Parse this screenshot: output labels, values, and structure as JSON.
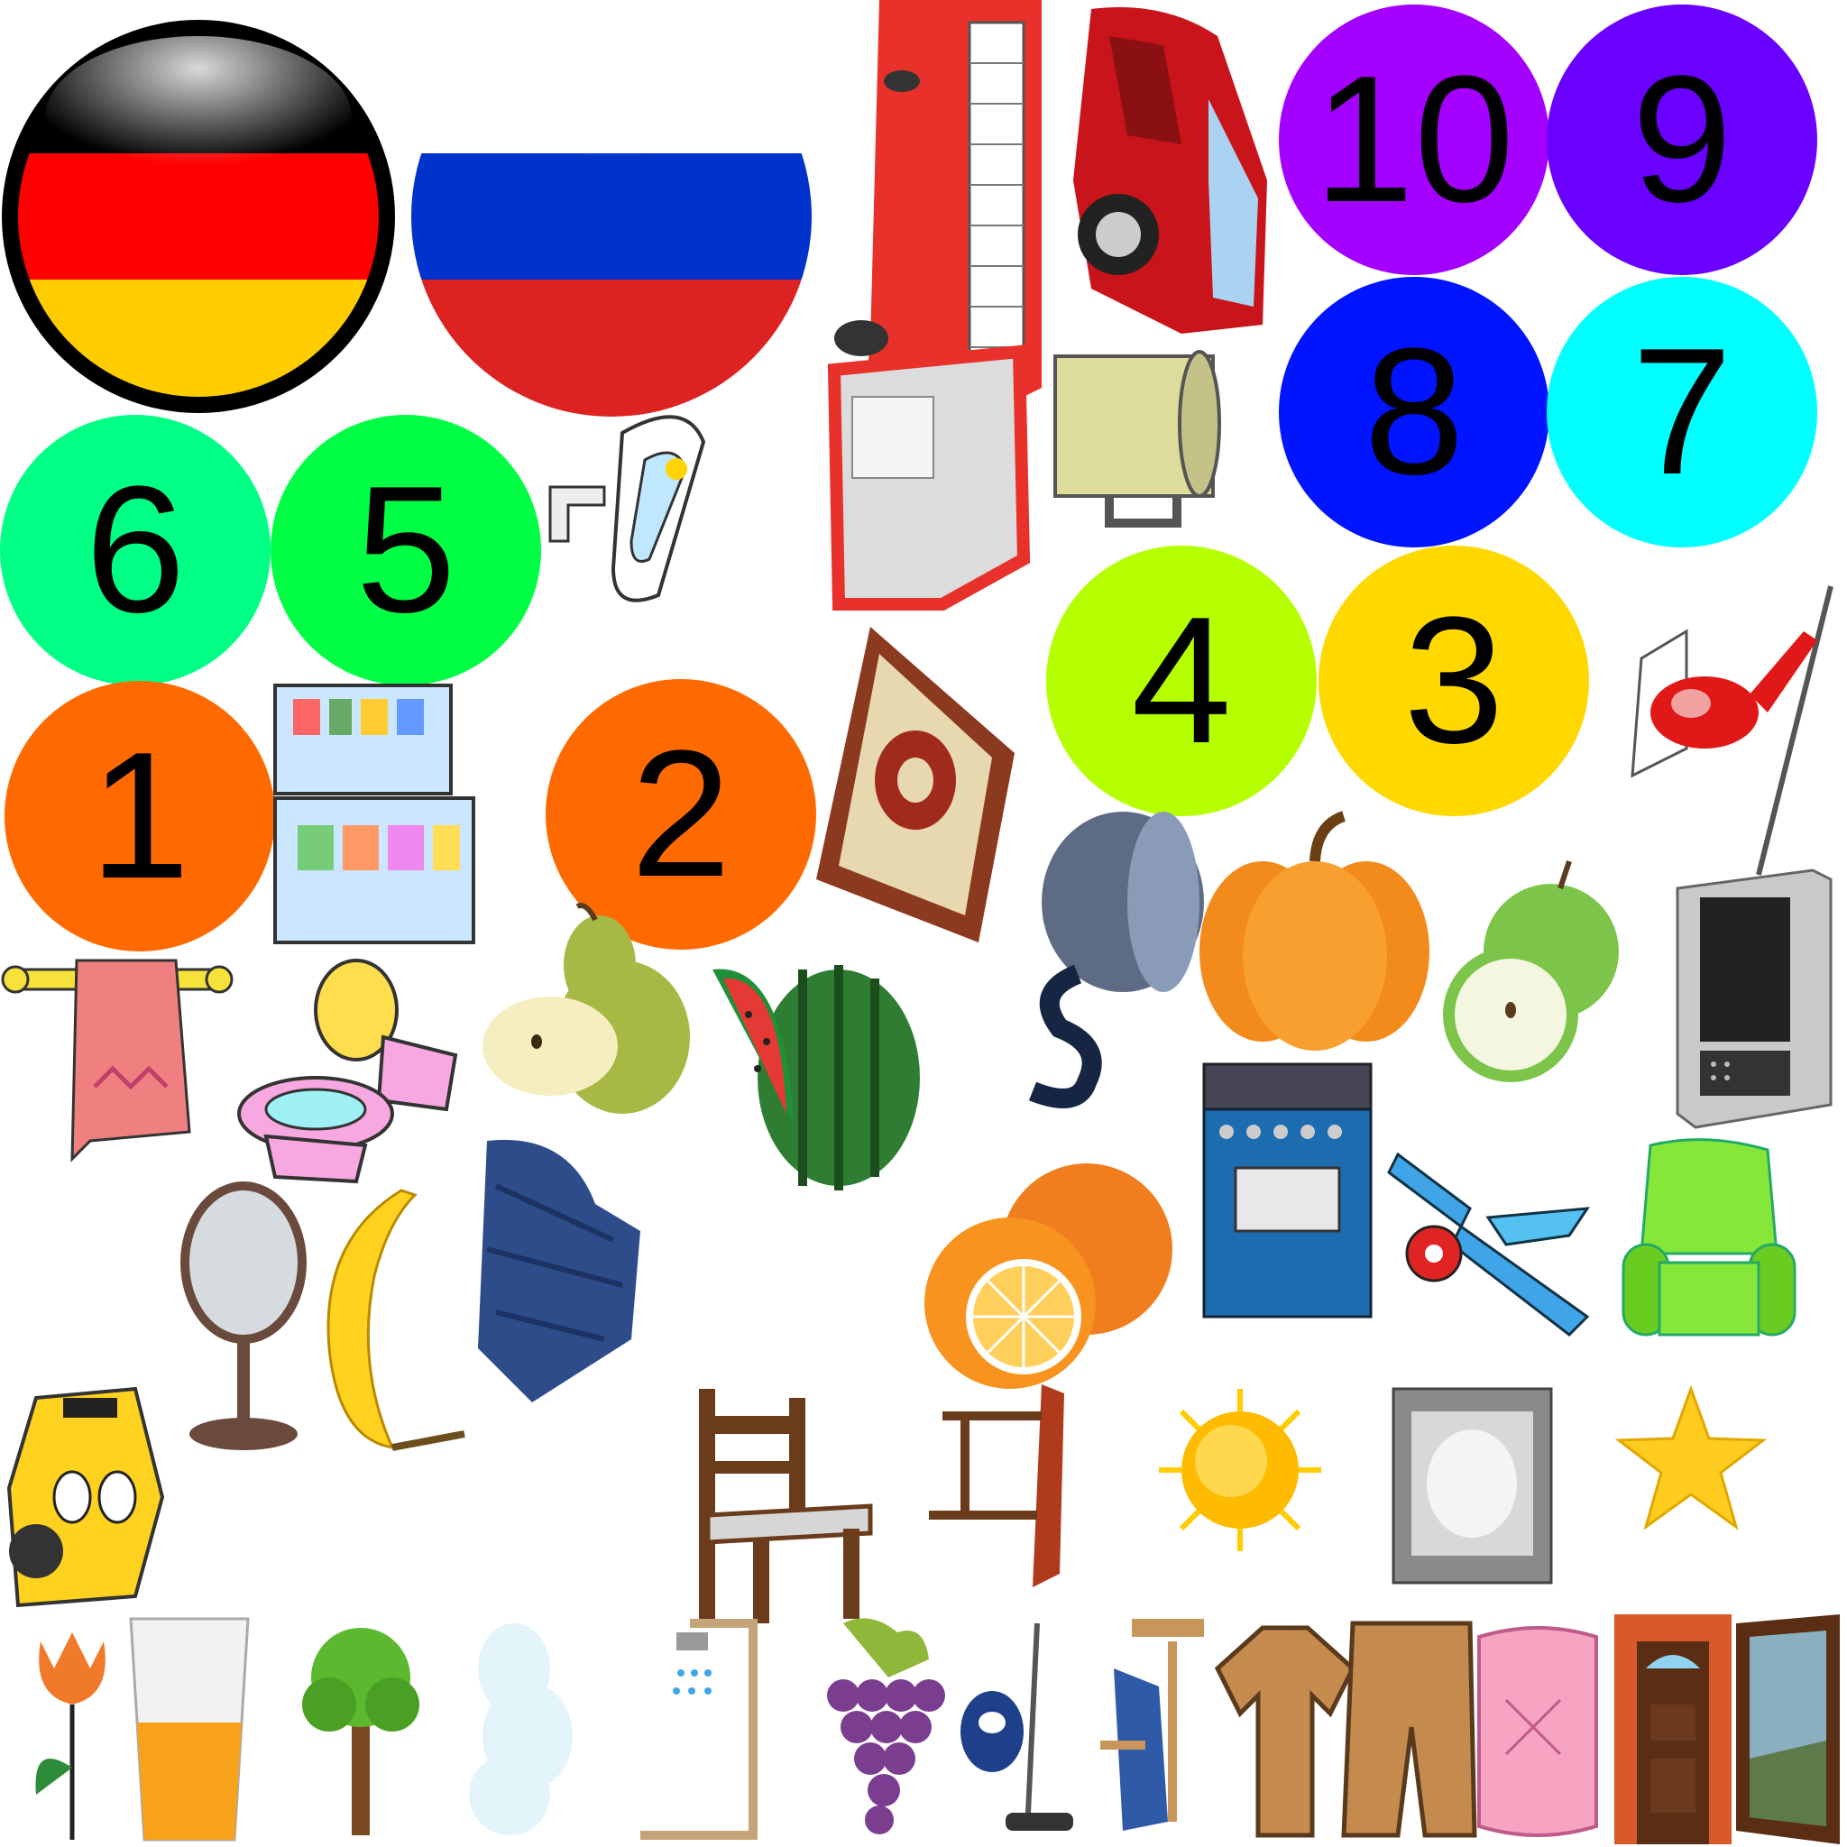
{
  "sheet": {
    "background": "#ffffff"
  },
  "number_badges": [
    {
      "label": "10",
      "color": "#a400ff"
    },
    {
      "label": "9",
      "color": "#6a00ff"
    },
    {
      "label": "8",
      "color": "#0014ff"
    },
    {
      "label": "7",
      "color": "#00ffff"
    },
    {
      "label": "6",
      "color": "#00ff85"
    },
    {
      "label": "5",
      "color": "#00ff44"
    },
    {
      "label": "4",
      "color": "#b5ff00"
    },
    {
      "label": "3",
      "color": "#ffd800"
    },
    {
      "label": "2",
      "color": "#ff6a00"
    },
    {
      "label": "1",
      "color": "#ff6a00"
    }
  ],
  "flags": [
    {
      "name": "germany-flag-icon",
      "stripes": [
        "#000000",
        "#ff0000",
        "#ffcc00"
      ]
    },
    {
      "name": "russia-flag-icon",
      "stripes": [
        "#ffffff",
        "#0033cc",
        "#dd2222"
      ]
    }
  ],
  "sprites": [
    "bus-icon",
    "red-car-icon",
    "mug-icon",
    "bathtub-icon",
    "fridge-icon",
    "carpet-icon",
    "helicopter-icon",
    "towel-icon",
    "toilet-icon",
    "pear-icon",
    "watermelon-icon",
    "frying-pan-icon",
    "pumpkin-icon",
    "apple-icon",
    "microwave-icon",
    "mirror-icon",
    "banana-icon",
    "blanket-icon",
    "orange-icon",
    "stove-icon",
    "airplane-icon",
    "armchair-icon",
    "taxi-icon",
    "chair-icon",
    "table-icon",
    "sun-icon",
    "television-icon",
    "star-icon",
    "flower-icon",
    "juice-glass-icon",
    "tree-icon",
    "cloud-icon",
    "shower-icon",
    "grapes-icon",
    "vacuum-cleaner-icon",
    "iron-icon",
    "shirt-icon",
    "shorts-icon",
    "pillow-icon",
    "door-icon",
    "window-icon"
  ]
}
